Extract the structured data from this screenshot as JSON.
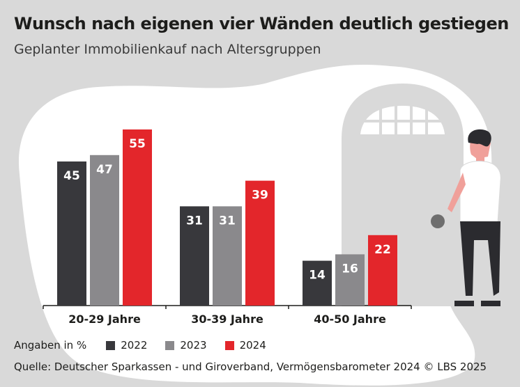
{
  "title": "Wunsch nach eigenen vier Wänden deutlich gestiegen",
  "subtitle": "Geplanter Immobilienkauf nach Altersgruppen",
  "legend": {
    "unit_label": "Angaben in %",
    "items": [
      {
        "label": "2022",
        "color": "#38383c"
      },
      {
        "label": "2023",
        "color": "#8a898c"
      },
      {
        "label": "2024",
        "color": "#e3262b"
      }
    ]
  },
  "source": "Quelle: Deutscher Sparkassen - und Giroverband, Vermögensbarometer 2024  © LBS 2025",
  "chart_data": {
    "type": "bar",
    "categories": [
      "20-29 Jahre",
      "30-39 Jahre",
      "40-50 Jahre"
    ],
    "series": [
      {
        "name": "2022",
        "values": [
          45,
          31,
          14
        ],
        "color": "#38383c"
      },
      {
        "name": "2023",
        "values": [
          47,
          31,
          16
        ],
        "color": "#8a898c"
      },
      {
        "name": "2024",
        "values": [
          55,
          39,
          22
        ],
        "color": "#e3262b"
      }
    ],
    "ylim": [
      0,
      60
    ],
    "grid": false,
    "legend_position": "bottom-left"
  }
}
